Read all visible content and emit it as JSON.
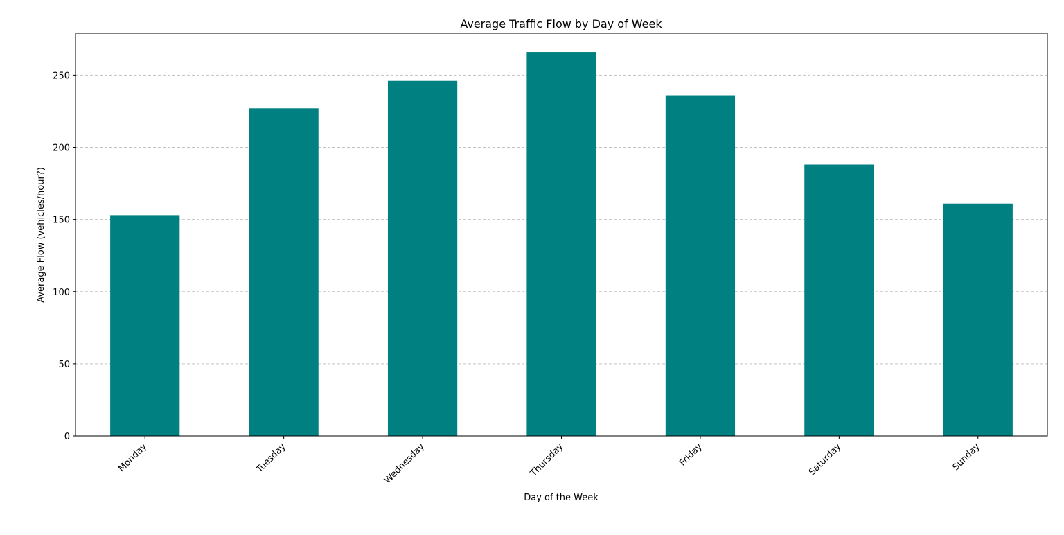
{
  "chart_data": {
    "type": "bar",
    "title": "Average Traffic Flow by Day of Week",
    "xlabel": "Day of the Week",
    "ylabel": "Average Flow (vehicles/hour?)",
    "categories": [
      "Monday",
      "Tuesday",
      "Wednesday",
      "Thursday",
      "Friday",
      "Saturday",
      "Sunday"
    ],
    "values": [
      153,
      227,
      246,
      266,
      236,
      188,
      161
    ],
    "ylim": [
      0,
      279
    ],
    "yticks": [
      0,
      50,
      100,
      150,
      200,
      250
    ],
    "grid": "y-dashed",
    "color": "#008080"
  }
}
